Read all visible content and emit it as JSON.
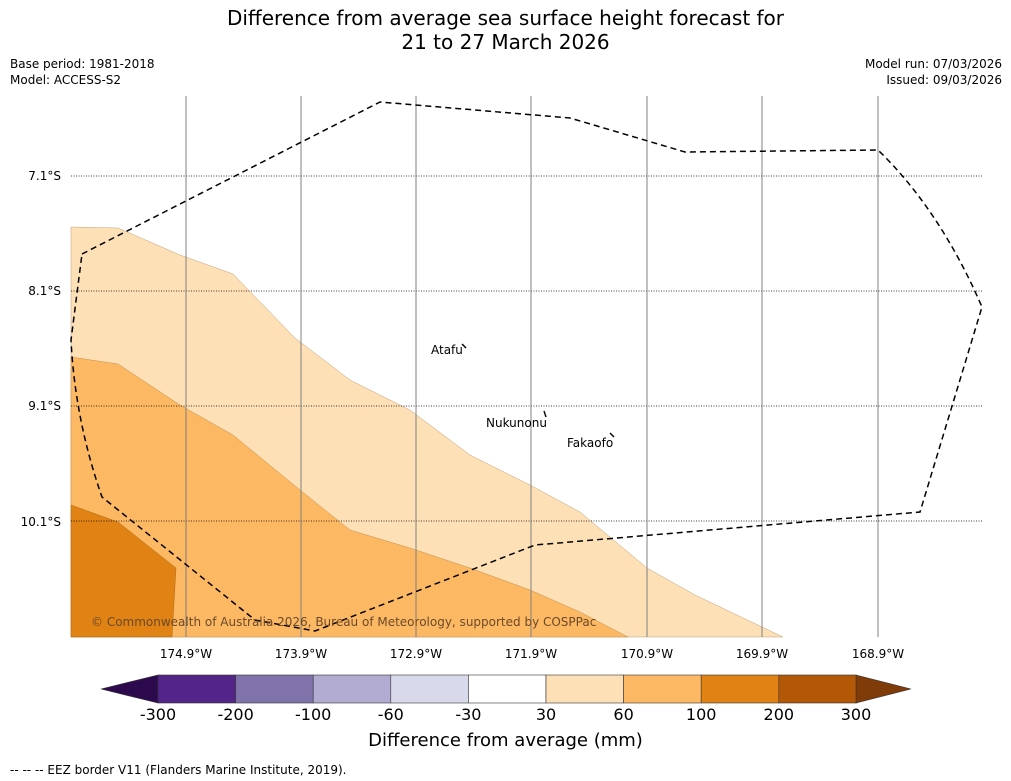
{
  "title": {
    "line1": "Difference from average sea surface height forecast for",
    "line2": "21 to 27 March 2026"
  },
  "meta": {
    "base_period": "Base period: 1981-2018",
    "model": "Model: ACCESS-S2",
    "model_run": "Model run: 07/03/2026",
    "issued": "Issued: 09/03/2026"
  },
  "map": {
    "lat_labels": [
      "7.1°S",
      "8.1°S",
      "9.1°S",
      "10.1°S"
    ],
    "lon_labels": [
      "174.9°W",
      "173.9°W",
      "172.9°W",
      "171.9°W",
      "170.9°W",
      "169.9°W",
      "168.9°W"
    ],
    "places": [
      "Atafu",
      "Nukunonu",
      "Fakaofo"
    ],
    "copyright": "© Commonwealth of Australia 2026, Bureau of Meteorology, supported by COSPPac"
  },
  "colorbar": {
    "ticks": [
      "-300",
      "-200",
      "-100",
      "-60",
      "-30",
      "30",
      "60",
      "100",
      "200",
      "300"
    ],
    "colors": [
      "#2d0a4e",
      "#542588",
      "#8073ac",
      "#b2abd2",
      "#d8daeb",
      "#ffffff",
      "#fee0b6",
      "#fdb863",
      "#e08214",
      "#b35806",
      "#7f3b08"
    ],
    "label": "Difference from average (mm)"
  },
  "footer": "--  --  -- EEZ border V11 (Flanders Marine Institute, 2019)."
}
